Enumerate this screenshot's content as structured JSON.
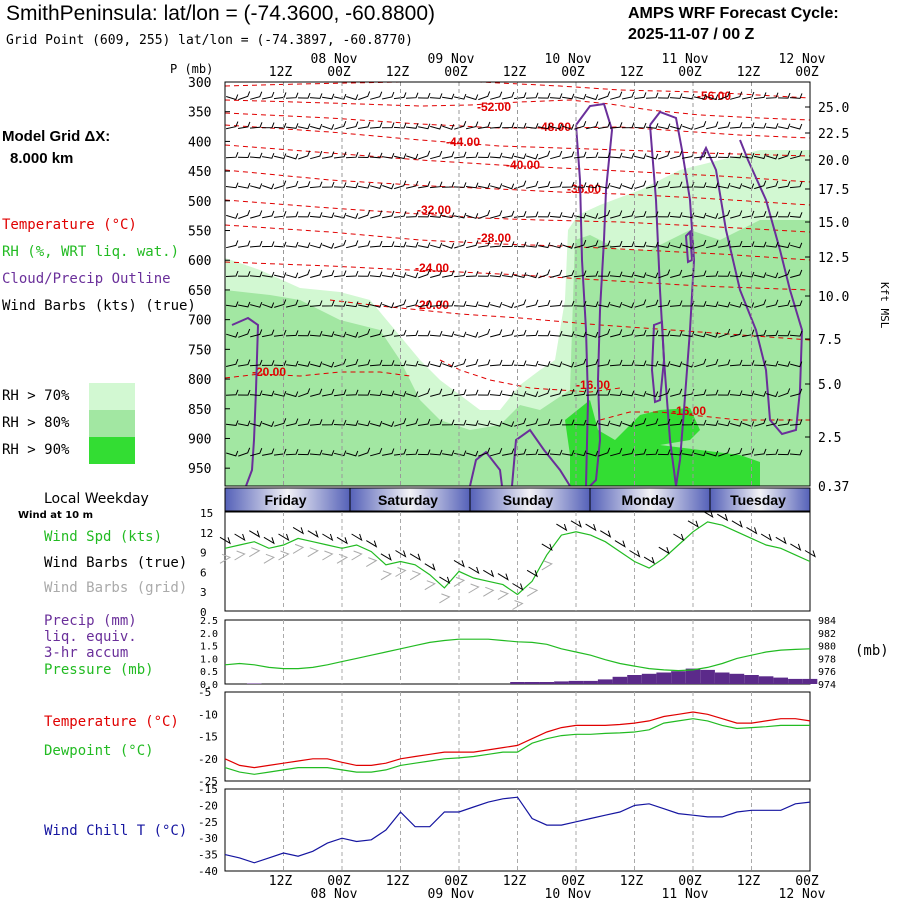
{
  "header": {
    "title": "SmithPeninsula:  lat/lon = (-74.3600, -60.8800)",
    "subtitle": "Grid Point (609, 255) lat/lon = (-74.3897, -60.8770)",
    "cycle_line1": "AMPS WRF Forecast Cycle:",
    "cycle_line2": "2025-11-07 / 00  Z",
    "model_grid_label": "Model Grid ΔX:",
    "model_grid_value": "8.000 km"
  },
  "colors": {
    "temperature": "#e00000",
    "rh": "#22bb22",
    "cloud": "#6a2f9a",
    "wind_chill": "#1515a0",
    "rh70": "#d2f8d2",
    "rh80": "#a2e7a2",
    "rh90": "#33dd33",
    "precip": "#5b2a8a",
    "grey_barbs": "#aaaaaa"
  },
  "legend_left": {
    "temperature": "Temperature (°C)",
    "rh": "RH (%, WRT liq. wat.)",
    "cloud": "Cloud/Precip Outline",
    "wind": "Wind Barbs (kts) (true)",
    "rh70": "RH > 70%",
    "rh80": "RH > 80%",
    "rh90": "RH > 90%"
  },
  "time_axis": {
    "hour_labels": [
      "12Z",
      "00Z",
      "12Z",
      "00Z",
      "12Z",
      "00Z",
      "12Z",
      "00Z",
      "12Z",
      "00Z"
    ],
    "date_labels": [
      "08 Nov",
      "09 Nov",
      "10 Nov",
      "11 Nov",
      "12 Nov"
    ]
  },
  "weekday_bar": {
    "title": "Local Weekday",
    "days": [
      "Friday",
      "Saturday",
      "Sunday",
      "Monday",
      "Tuesday"
    ]
  },
  "surface_labels": {
    "wind10": "Wind at 10 m",
    "wind_spd": "Wind Spd (kts)",
    "wind_barbs": "Wind Barbs (true)",
    "wind_barbs_grid": "Wind Barbs (grid)",
    "precip_1": "Precip (mm)",
    "precip_2": "liq. equiv.",
    "precip_3": "3-hr accum",
    "pressure": "Pressure (mb)",
    "pressure_unit": "(mb)",
    "temperature": "Temperature (°C)",
    "dewpoint": "Dewpoint (°C)",
    "wind_chill": "Wind Chill T (°C)"
  },
  "chart_data": [
    {
      "type": "heatmap",
      "name": "cross-section",
      "ylabel_left": "P (mb)",
      "ylabel_right": "Kft MSL",
      "pressure_levels": [
        300,
        350,
        400,
        450,
        500,
        550,
        600,
        650,
        700,
        750,
        800,
        850,
        900,
        950
      ],
      "kft_ticks": [
        "25.0",
        "22.5",
        "20.0",
        "17.5",
        "15.0",
        "12.5",
        "10.0",
        "7.5",
        "5.0",
        "2.5",
        "0.37"
      ],
      "x_hours": [
        0,
        120
      ],
      "temperature_contours": [
        "-56.00",
        "-52.00",
        "-48.00",
        "-44.00",
        "-40.00",
        "-36.00",
        "-32.00",
        "-28.00",
        "-24.00",
        "-20.00",
        "-20.00",
        "-16.00",
        "-16.00"
      ]
    },
    {
      "type": "line",
      "name": "wind-speed",
      "ylabel": "Wind Spd (kts)",
      "yticks": [
        "0",
        "3",
        "6",
        "9",
        "12",
        "15"
      ],
      "ylim": [
        0,
        15
      ],
      "x": [
        0,
        3,
        6,
        9,
        12,
        15,
        18,
        21,
        24,
        27,
        30,
        33,
        36,
        39,
        42,
        45,
        48,
        51,
        54,
        57,
        60,
        63,
        66,
        69,
        72,
        75,
        78,
        81,
        84,
        87,
        90,
        93,
        96,
        99,
        102,
        105,
        108,
        111,
        114,
        117,
        120
      ],
      "values": [
        9.5,
        10,
        10.5,
        9.5,
        10,
        11,
        10.5,
        10,
        9.5,
        10,
        9,
        7,
        7.5,
        7,
        5.5,
        3.5,
        6,
        5,
        4.5,
        4,
        2.5,
        4.5,
        8.5,
        11.5,
        12,
        11.5,
        10.5,
        9,
        7.5,
        6.5,
        8,
        10,
        12,
        13.5,
        13,
        12,
        11,
        10,
        9.5,
        8.5,
        7.5
      ]
    },
    {
      "type": "bar",
      "name": "precip-pressure",
      "ylabel_left": "Precip (mm)",
      "ylabel_right": "Pressure (mb)",
      "precip_ticks": [
        "0.0",
        "0.5",
        "1.0",
        "1.5",
        "2.0",
        "2.5"
      ],
      "precip_ylim": [
        0,
        2.5
      ],
      "pressure_ticks": [
        "974",
        "976",
        "978",
        "980",
        "982",
        "984"
      ],
      "pressure_ylim": [
        974,
        984
      ],
      "x": [
        0,
        3,
        6,
        9,
        12,
        15,
        18,
        21,
        24,
        27,
        30,
        33,
        36,
        39,
        42,
        45,
        48,
        51,
        54,
        57,
        60,
        63,
        66,
        69,
        72,
        75,
        78,
        81,
        84,
        87,
        90,
        93,
        96,
        99,
        102,
        105,
        108,
        111,
        114,
        117,
        120
      ],
      "precip": [
        0,
        0,
        0.02,
        0,
        0,
        0,
        0,
        0,
        0,
        0,
        0,
        0,
        0,
        0,
        0,
        0,
        0,
        0,
        0,
        0,
        0.08,
        0.08,
        0.08,
        0.1,
        0.12,
        0.12,
        0.18,
        0.28,
        0.35,
        0.4,
        0.45,
        0.5,
        0.6,
        0.55,
        0.45,
        0.4,
        0.35,
        0.3,
        0.25,
        0.2,
        0.2
      ],
      "pressure": [
        977,
        977.2,
        977,
        976.6,
        976.4,
        976.4,
        976.6,
        977,
        977.5,
        978,
        978.5,
        979,
        979.5,
        980,
        980.5,
        980.8,
        981,
        981,
        981,
        980.8,
        980.6,
        980.5,
        980.2,
        979.5,
        979,
        978.5,
        977.8,
        977.2,
        976.8,
        976.4,
        976.2,
        976.1,
        976.2,
        976.6,
        977.2,
        978,
        978.5,
        979,
        979.3,
        979.4,
        979.5
      ]
    },
    {
      "type": "line",
      "name": "temperature-dewpoint",
      "yticks": [
        "-25",
        "-20",
        "-15",
        "-10",
        "-5"
      ],
      "ylim": [
        -25,
        -5
      ],
      "x": [
        0,
        3,
        6,
        9,
        12,
        15,
        18,
        21,
        24,
        27,
        30,
        33,
        36,
        39,
        42,
        45,
        48,
        51,
        54,
        57,
        60,
        63,
        66,
        69,
        72,
        75,
        78,
        81,
        84,
        87,
        90,
        93,
        96,
        99,
        102,
        105,
        108,
        111,
        114,
        117,
        120
      ],
      "series": [
        {
          "name": "Temperature",
          "values": [
            -20,
            -21.5,
            -22,
            -21.5,
            -21,
            -20.5,
            -20,
            -20,
            -20.8,
            -21.5,
            -21.5,
            -21,
            -20,
            -19.5,
            -19,
            -18.5,
            -18.5,
            -18.5,
            -18,
            -17.5,
            -17,
            -15.5,
            -14,
            -13,
            -12.5,
            -12.5,
            -12.5,
            -12.3,
            -12,
            -11.5,
            -10.5,
            -10,
            -9.5,
            -10,
            -11,
            -12,
            -12,
            -11.5,
            -11,
            -11,
            -11.5
          ]
        },
        {
          "name": "Dewpoint",
          "values": [
            -22,
            -23,
            -23.5,
            -23,
            -22.5,
            -22,
            -22,
            -22,
            -22.5,
            -23,
            -23,
            -22.5,
            -21.5,
            -21,
            -20.5,
            -20,
            -19.8,
            -19.5,
            -19,
            -18.5,
            -18.5,
            -16.5,
            -15.5,
            -14.8,
            -14.5,
            -14.5,
            -14.3,
            -14.2,
            -14,
            -13.5,
            -12,
            -11.5,
            -11,
            -11.5,
            -12.5,
            -13.2,
            -13,
            -12.8,
            -12.5,
            -12.5,
            -12.5
          ]
        }
      ]
    },
    {
      "type": "line",
      "name": "wind-chill",
      "ylabel": "Wind Chill T (°C)",
      "yticks": [
        "-40",
        "-35",
        "-30",
        "-25",
        "-20",
        "-15"
      ],
      "ylim": [
        -40,
        -15
      ],
      "x": [
        0,
        3,
        6,
        9,
        12,
        15,
        18,
        21,
        24,
        27,
        30,
        33,
        36,
        39,
        42,
        45,
        48,
        51,
        54,
        57,
        60,
        63,
        66,
        69,
        72,
        75,
        78,
        81,
        84,
        87,
        90,
        93,
        96,
        99,
        102,
        105,
        108,
        111,
        114,
        117,
        120
      ],
      "values": [
        -35,
        -36,
        -37.5,
        -36,
        -34.5,
        -35.5,
        -34,
        -31.5,
        -30,
        -31,
        -30.5,
        -27.5,
        -22,
        -26.5,
        -26.5,
        -22,
        -22,
        -20.5,
        -19,
        -18,
        -17.5,
        -24,
        -26,
        -26,
        -25,
        -24,
        -23,
        -22,
        -20,
        -19.5,
        -21,
        -22.5,
        -23,
        -23.5,
        -23.5,
        -22,
        -21.5,
        -21.5,
        -21.5,
        -19.5,
        -19
      ]
    }
  ]
}
